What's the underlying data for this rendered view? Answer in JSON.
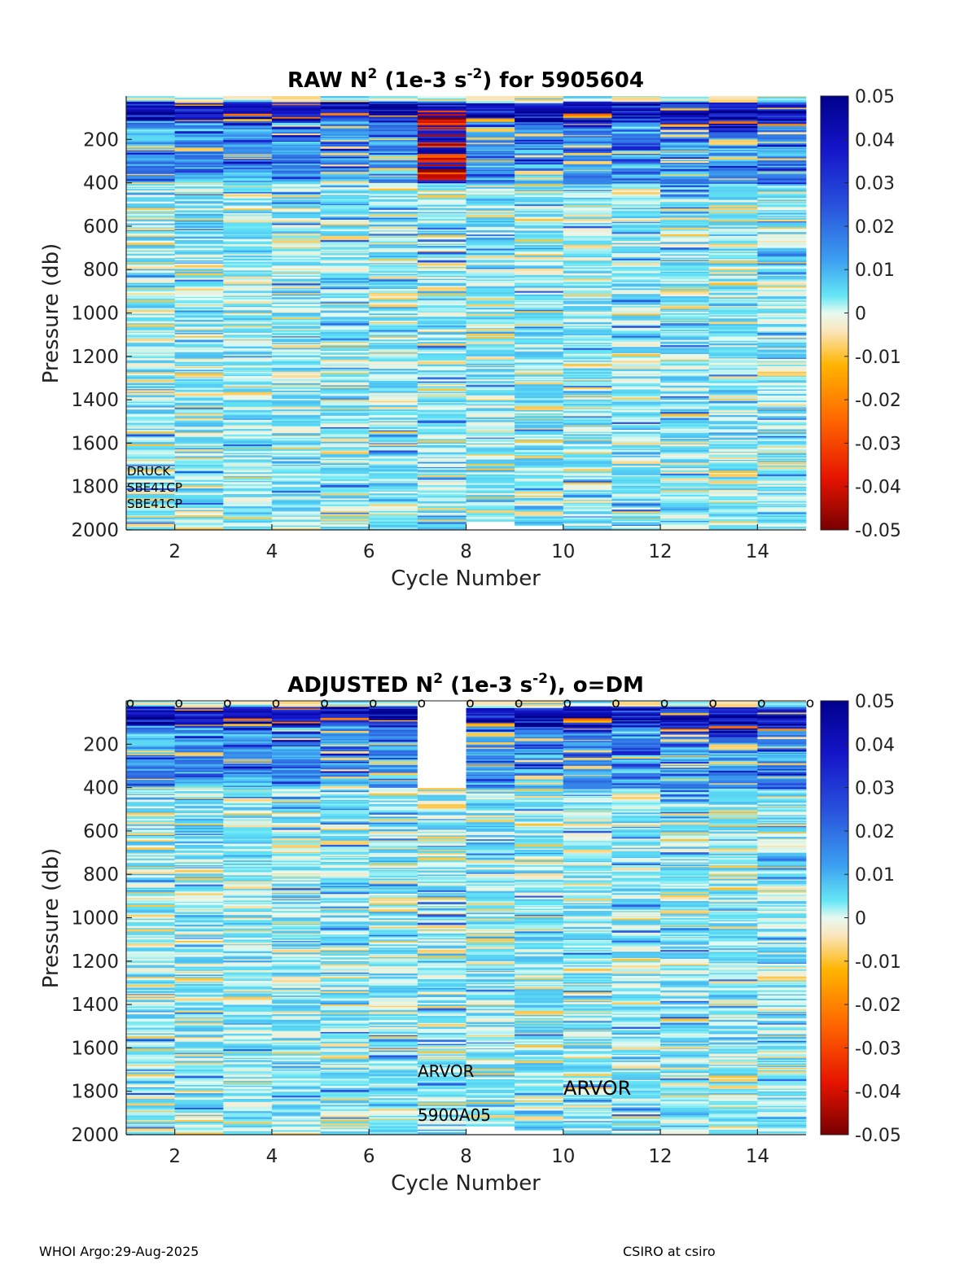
{
  "chart_data": [
    {
      "type": "heatmap",
      "title_prefix": "RAW N",
      "title_sup1": "2",
      "title_mid": " (1e-3 s",
      "title_sup2": "-2",
      "title_suffix": ") for 5905604",
      "xlabel": "Cycle Number",
      "ylabel": "Pressure (db)",
      "xlim": [
        1,
        15
      ],
      "ylim": [
        2000,
        0
      ],
      "xticks": [
        "2",
        "4",
        "6",
        "8",
        "10",
        "12",
        "14"
      ],
      "yticks": [
        "200",
        "400",
        "600",
        "800",
        "1000",
        "1200",
        "1400",
        "1600",
        "1800",
        "2000"
      ],
      "colorbar": {
        "range": [
          -0.05,
          0.05
        ],
        "ticks": [
          "0.05",
          "0.04",
          "0.03",
          "0.02",
          "0.01",
          "0",
          "-0.01",
          "-0.02",
          "-0.03",
          "-0.04",
          "-0.05"
        ]
      },
      "cycles": [
        1,
        2,
        3,
        4,
        5,
        6,
        7,
        8,
        9,
        10,
        11,
        12,
        13,
        14
      ],
      "max_pressure": [
        2000,
        2000,
        2000,
        2000,
        2010,
        2010,
        2000,
        1960,
        1980,
        2000,
        2010,
        2000,
        2010,
        2010
      ],
      "upper_strong_positive_depth": [
        110,
        120,
        130,
        120,
        100,
        120,
        80,
        110,
        120,
        140,
        120,
        150,
        160,
        130
      ],
      "strong_negative_band": {
        "cycle": 7,
        "from": 60,
        "to": 400
      },
      "annotations": [
        "DRUCK",
        "SBE41CP",
        "SBE41CP"
      ]
    },
    {
      "type": "heatmap",
      "title_prefix": "ADJUSTED N",
      "title_sup1": "2",
      "title_mid": " (1e-3 s",
      "title_sup2": "-2",
      "title_suffix": "), o=DM",
      "xlabel": "Cycle Number",
      "ylabel": "Pressure (db)",
      "xlim": [
        1,
        15
      ],
      "ylim": [
        2000,
        0
      ],
      "xticks": [
        "2",
        "4",
        "6",
        "8",
        "10",
        "12",
        "14"
      ],
      "yticks": [
        "200",
        "400",
        "600",
        "800",
        "1000",
        "1200",
        "1400",
        "1600",
        "1800",
        "2000"
      ],
      "colorbar": {
        "range": [
          -0.05,
          0.05
        ],
        "ticks": [
          "0.05",
          "0.04",
          "0.03",
          "0.02",
          "0.01",
          "0",
          "-0.01",
          "-0.02",
          "-0.03",
          "-0.04",
          "-0.05"
        ]
      },
      "cycles": [
        1,
        2,
        3,
        4,
        5,
        6,
        7,
        8,
        9,
        10,
        11,
        12,
        13,
        14
      ],
      "max_pressure": [
        2000,
        2000,
        2000,
        2000,
        2010,
        2010,
        2000,
        1960,
        1980,
        2000,
        2010,
        2000,
        2010,
        2010
      ],
      "upper_strong_positive_depth": [
        110,
        120,
        130,
        120,
        100,
        120,
        400,
        110,
        120,
        140,
        120,
        150,
        160,
        130
      ],
      "missing_band": {
        "cycle": 7,
        "from": 0,
        "to": 400
      },
      "dm_marker": "o",
      "dm_cycles": [
        1,
        2,
        3,
        4,
        5,
        6,
        7,
        8,
        9,
        10,
        11,
        12,
        13,
        14,
        15
      ],
      "annotations": [
        "ARVOR",
        "5900A05",
        "ARVOR"
      ]
    }
  ],
  "footer": {
    "left": "WHOI Argo:29-Aug-2025",
    "right": "CSIRO at csiro"
  }
}
